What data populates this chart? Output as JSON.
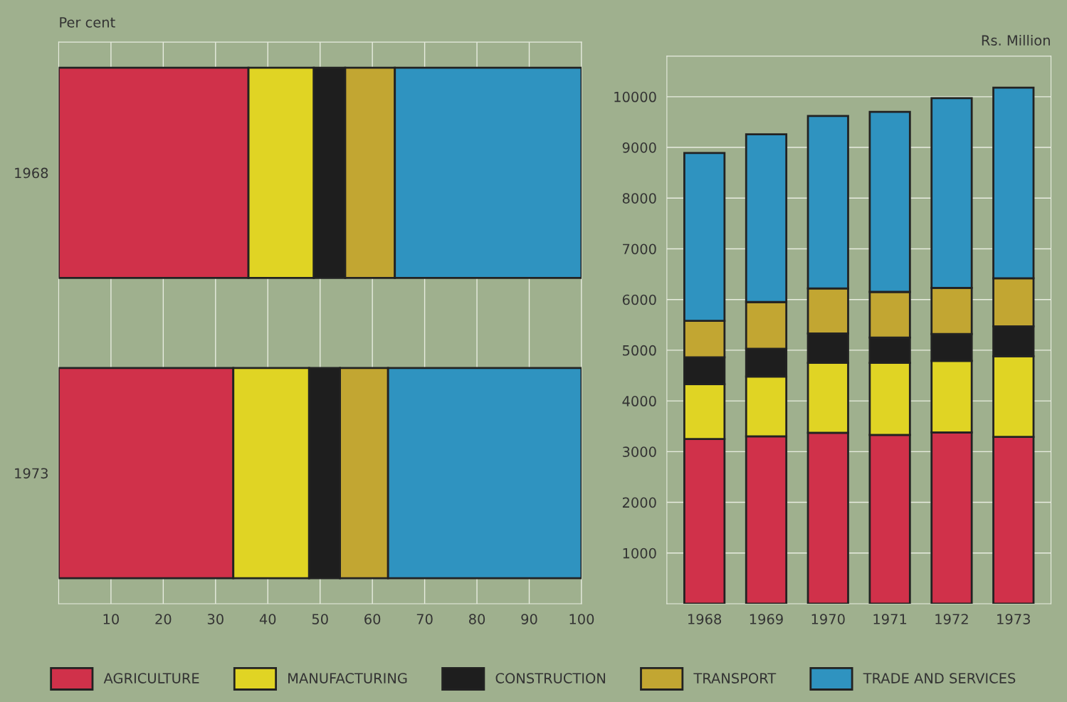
{
  "chart_data": [
    {
      "type": "bar",
      "orientation": "horizontal",
      "stacked": true,
      "xlabel": "Per cent",
      "categories": [
        "1968",
        "1973"
      ],
      "xlim": [
        0,
        100
      ],
      "xticks": [
        10,
        20,
        30,
        40,
        50,
        60,
        70,
        80,
        90,
        100
      ],
      "grid": "x",
      "legend": "bottom",
      "series": [
        {
          "name": "AGRICULTURE",
          "color": "#d0314a",
          "values": [
            36.3,
            33.4
          ]
        },
        {
          "name": "MANUFACTURING",
          "color": "#e0d424",
          "values": [
            12.5,
            14.5
          ]
        },
        {
          "name": "CONSTRUCTION",
          "color": "#1e1e1e",
          "values": [
            6,
            5.9
          ]
        },
        {
          "name": "TRANSPORT",
          "color": "#c2a632",
          "values": [
            9.5,
            9.2
          ]
        },
        {
          "name": "TRADE AND SERVICES",
          "color": "#2f93c0",
          "values": [
            35.7,
            37
          ]
        }
      ]
    },
    {
      "type": "bar",
      "stacked": true,
      "ylabel": "Rs. Million",
      "categories": [
        "1968",
        "1969",
        "1970",
        "1971",
        "1972",
        "1973"
      ],
      "ylim": [
        0,
        10800
      ],
      "yticks": [
        1000,
        2000,
        3000,
        4000,
        5000,
        6000,
        7000,
        8000,
        9000,
        10000
      ],
      "grid": "y",
      "legend": "bottom",
      "series": [
        {
          "name": "AGRICULTURE",
          "color": "#d0314a",
          "values": [
            3250,
            3300,
            3370,
            3330,
            3380,
            3290
          ]
        },
        {
          "name": "MANUFACTURING",
          "color": "#e0d424",
          "values": [
            1080,
            1180,
            1380,
            1420,
            1410,
            1590
          ]
        },
        {
          "name": "CONSTRUCTION",
          "color": "#1e1e1e",
          "values": [
            530,
            550,
            580,
            500,
            530,
            590
          ]
        },
        {
          "name": "TRANSPORT",
          "color": "#c2a632",
          "values": [
            720,
            920,
            890,
            900,
            910,
            950
          ]
        },
        {
          "name": "TRADE AND SERVICES",
          "color": "#2f93c0",
          "values": [
            3310,
            3310,
            3400,
            3550,
            3740,
            3760
          ]
        }
      ]
    }
  ]
}
